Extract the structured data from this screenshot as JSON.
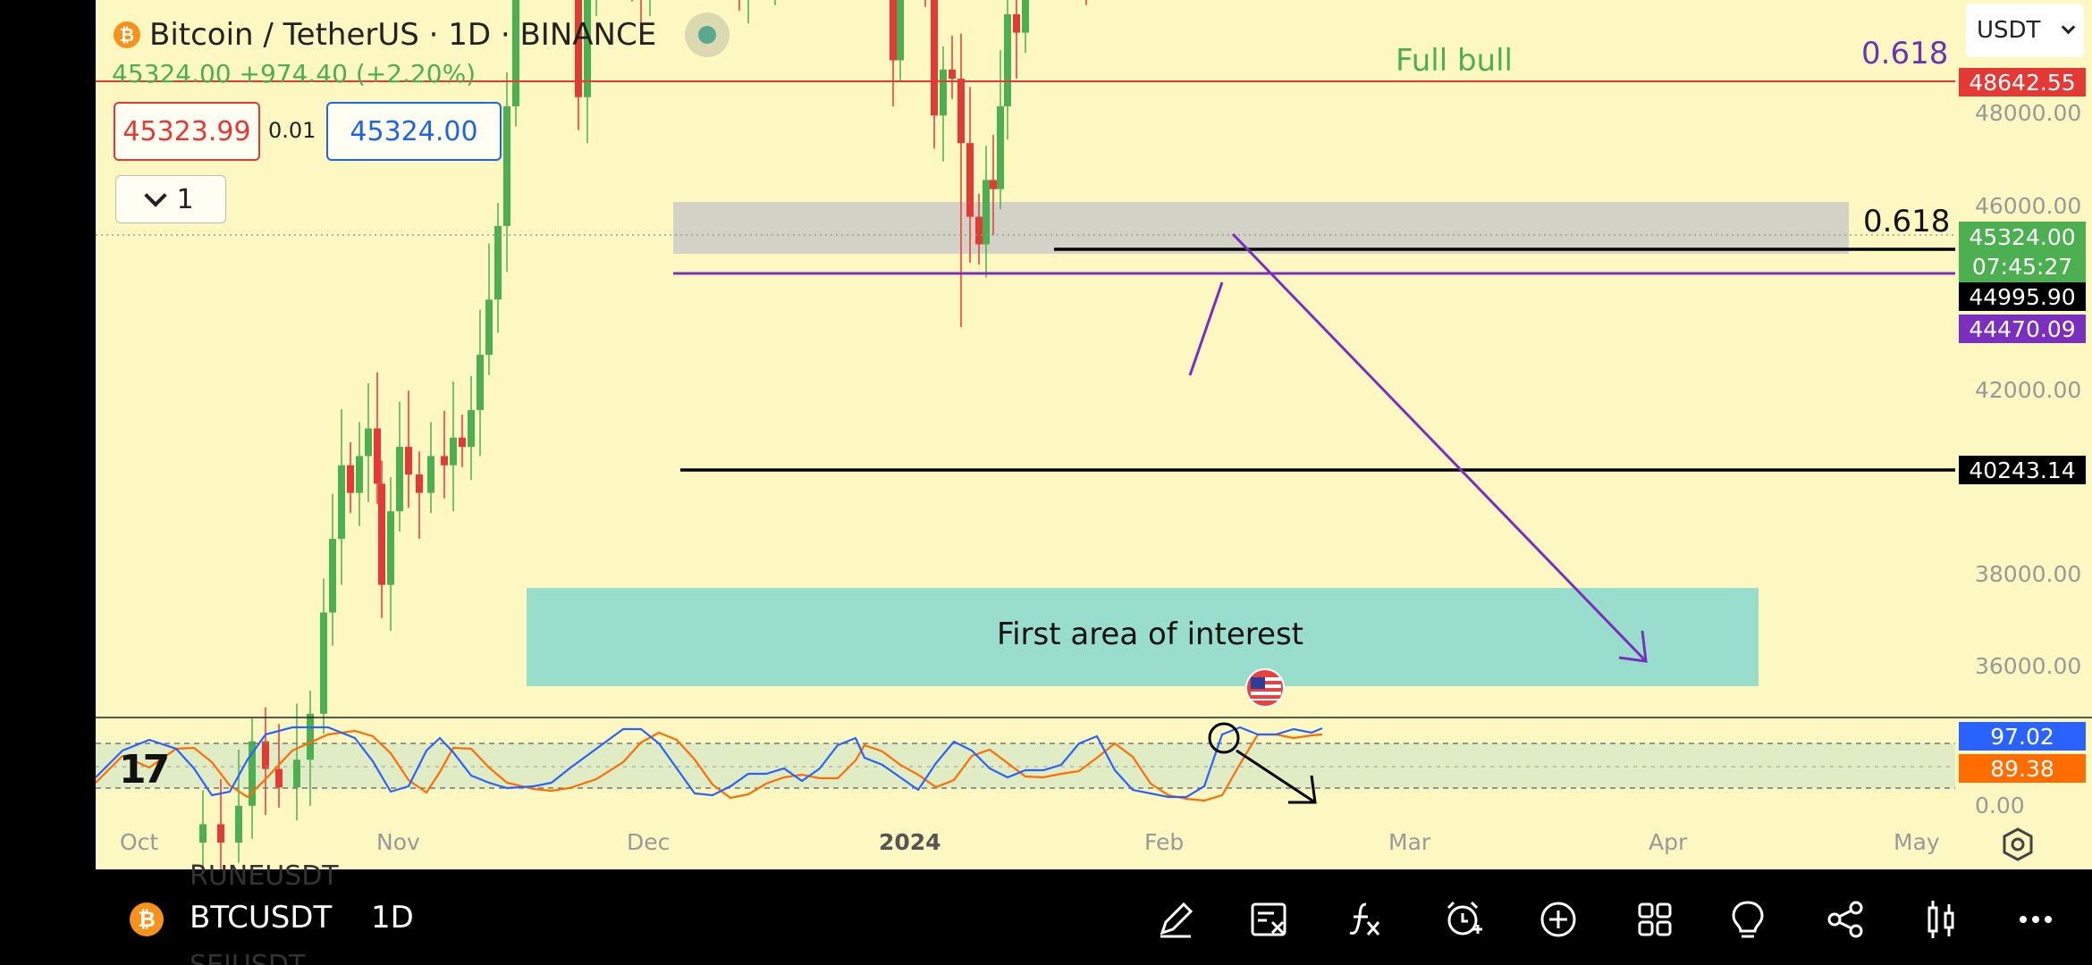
{
  "header": {
    "symbol_title": "Bitcoin / TetherUS · 1D · BINANCE",
    "price_change": "45324.00 +974.40 (+2.20%)",
    "bid": "45323.99",
    "spread": "0.01",
    "ask": "45324.00",
    "quantity": "1",
    "currency": "USDT"
  },
  "annotations": {
    "full_bull": "Full bull",
    "fib_top": "0.618",
    "fib_zone": "0.618",
    "interest_zone": "First area of interest"
  },
  "price_axis": {
    "ticks": [
      "48000.00",
      "46000.00",
      "42000.00",
      "38000.00",
      "36000.00"
    ],
    "tags": {
      "high_line": "48642.55",
      "last_price": "45324.00",
      "countdown": "07:45:27",
      "resistance": "44995.90",
      "purple_line": "44470.09",
      "support": "40243.14"
    }
  },
  "oscillator": {
    "k_value": "97.02",
    "d_value": "89.38",
    "zero_label": "0.00"
  },
  "time_axis": [
    "Oct",
    "Nov",
    "Dec",
    "2024",
    "Feb",
    "Mar",
    "Apr",
    "May"
  ],
  "bottom_bar": {
    "symbol": "BTCUSDT",
    "timeframe": "1D",
    "ghost_above": "RUNEUSDT",
    "ghost_below": "SEIUSDT",
    "coin_letter": "₿"
  },
  "colors": {
    "background": "#fdf8c2",
    "up": "#4caf50",
    "down": "#e53935",
    "purple": "#7b2fbf",
    "zone": "#99ddcc",
    "k_line": "#2962ff",
    "d_line": "#ff6d00"
  },
  "icons": [
    "pencil-icon",
    "remove-drawings-icon",
    "indicators-icon",
    "alert-icon",
    "add-icon",
    "layout-icon",
    "ideas-icon",
    "share-icon",
    "candles-icon",
    "more-icon",
    "settings-icon",
    "tradingview-logo"
  ]
}
